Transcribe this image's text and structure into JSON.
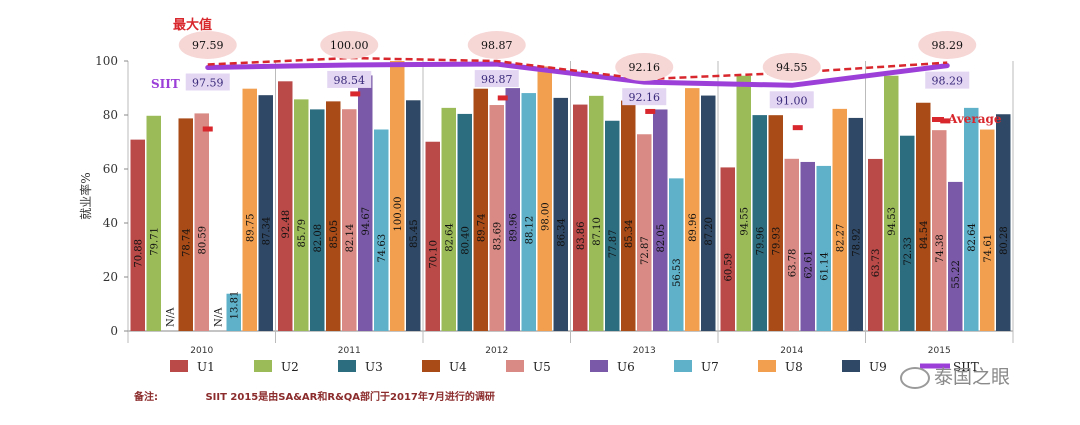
{
  "chart_data": {
    "type": "bar",
    "ylabel": "就业率%",
    "ylim": [
      0,
      100
    ],
    "yticks": [
      0,
      20,
      40,
      60,
      80,
      100
    ],
    "categories": [
      "2010",
      "2011",
      "2012",
      "2013",
      "2014",
      "2015"
    ],
    "colors": {
      "U1": "#b94a48",
      "U2": "#9bbb59",
      "U3": "#2c6d80",
      "U4": "#a84b17",
      "U5": "#d98a84",
      "U6": "#7a5aa8",
      "U7": "#5eb1c9",
      "U8": "#f2a050",
      "U9": "#2f4865",
      "SIIT": "#9b3fd8",
      "Average": "#d8272d"
    },
    "series": [
      {
        "name": "U1",
        "values": [
          70.88,
          92.48,
          70.1,
          83.86,
          60.59,
          63.73
        ],
        "labels": [
          "70.88",
          "92.48",
          "70.10",
          "83.86",
          "60.59",
          "63.73"
        ]
      },
      {
        "name": "U2",
        "values": [
          79.71,
          85.79,
          82.64,
          87.1,
          94.55,
          94.53
        ],
        "labels": [
          "79.71",
          "85.79",
          "82.64",
          "87.10",
          "94.55",
          "94.53"
        ]
      },
      {
        "name": "U3",
        "values": [
          null,
          82.08,
          80.4,
          77.87,
          79.96,
          72.33
        ],
        "labels": [
          "N/A",
          "82.08",
          "80.40",
          "77.87",
          "79.96",
          "72.33"
        ]
      },
      {
        "name": "U4",
        "values": [
          78.74,
          85.05,
          89.74,
          85.34,
          79.93,
          84.54
        ],
        "labels": [
          "78.74",
          "85.05",
          "89.74",
          "85.34",
          "79.93",
          "84.54"
        ]
      },
      {
        "name": "U5",
        "values": [
          80.59,
          82.14,
          83.69,
          72.87,
          63.78,
          74.38
        ],
        "labels": [
          "80.59",
          "82.14",
          "83.69",
          "72.87",
          "63.78",
          "74.38"
        ]
      },
      {
        "name": "U6",
        "values": [
          null,
          94.67,
          89.96,
          82.05,
          62.61,
          55.22
        ],
        "labels": [
          "N/A",
          "94.67",
          "89.96",
          "82.05",
          "62.61",
          "55.22"
        ]
      },
      {
        "name": "U7",
        "values": [
          13.81,
          74.63,
          88.12,
          56.53,
          61.14,
          82.64
        ],
        "labels": [
          "13.81",
          "74.63",
          "88.12",
          "56.53",
          "61.14",
          "82.64"
        ]
      },
      {
        "name": "U8",
        "values": [
          89.75,
          100.0,
          98.0,
          89.96,
          82.27,
          74.61
        ],
        "labels": [
          "89.75",
          "100.00",
          "98.00",
          "89.96",
          "82.27",
          "74.61"
        ]
      },
      {
        "name": "U9",
        "values": [
          87.34,
          85.45,
          86.34,
          87.2,
          78.92,
          80.28
        ],
        "labels": [
          "87.34",
          "85.45",
          "86.34",
          "87.20",
          "78.92",
          "80.28"
        ]
      }
    ],
    "siit": {
      "name": "SIIT",
      "values": [
        97.59,
        98.54,
        98.87,
        92.16,
        91.0,
        98.29
      ],
      "labels": [
        "97.59",
        "98.54",
        "98.87",
        "92.16",
        "91.00",
        "98.29"
      ]
    },
    "max_line": {
      "name": "最大值",
      "values": [
        97.59,
        100.0,
        98.87,
        92.16,
        94.55,
        98.29
      ],
      "labels": [
        "97.59",
        "100.00",
        "98.87",
        "92.16",
        "94.55",
        "98.29"
      ]
    },
    "average": {
      "name": "Average",
      "values": [
        75.0,
        88.0,
        86.5,
        81.5,
        75.5,
        78.0
      ]
    },
    "legend": [
      "U1",
      "U2",
      "U3",
      "U4",
      "U5",
      "U6",
      "U7",
      "U8",
      "U9",
      "SIIT"
    ],
    "siit_label": "SIIT",
    "max_label": "最大值",
    "average_label": "Average"
  },
  "note": {
    "key": "备注:",
    "text": "SIIT 2015是由SA&AR和R&QA部门于2017年7月进行的调研"
  },
  "watermark": "泰国之眼"
}
